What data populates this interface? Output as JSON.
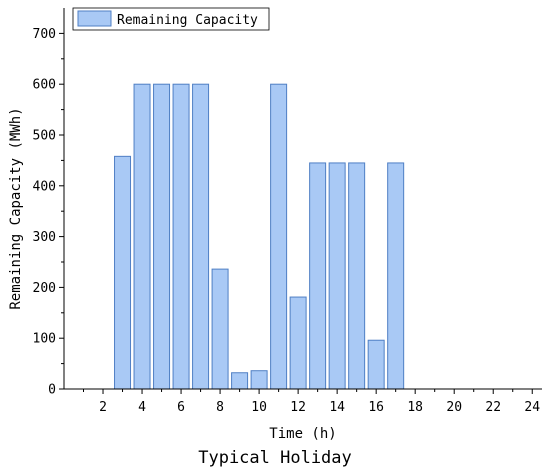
{
  "caption": "Typical Holiday",
  "chart_data": {
    "type": "bar",
    "title": "",
    "xlabel": "Time (h)",
    "ylabel": "Remaining Capacity (MWh)",
    "xlim": [
      0,
      24.5
    ],
    "ylim": [
      0,
      750
    ],
    "x_ticks": [
      2,
      4,
      6,
      8,
      10,
      12,
      14,
      16,
      18,
      20,
      22,
      24
    ],
    "y_ticks": [
      0,
      100,
      200,
      300,
      400,
      500,
      600,
      700
    ],
    "grid": false,
    "legend_position": "top-left",
    "series": [
      {
        "name": "Remaining Capacity",
        "color": "#a9c9f5",
        "edge_color": "#4f7fc4",
        "x": [
          3,
          4,
          5,
          6,
          7,
          8,
          9,
          10,
          11,
          12,
          13,
          14,
          15,
          16,
          17
        ],
        "values": [
          458,
          600,
          600,
          600,
          600,
          236,
          32,
          36,
          600,
          181,
          445,
          445,
          445,
          96,
          445
        ]
      }
    ]
  }
}
